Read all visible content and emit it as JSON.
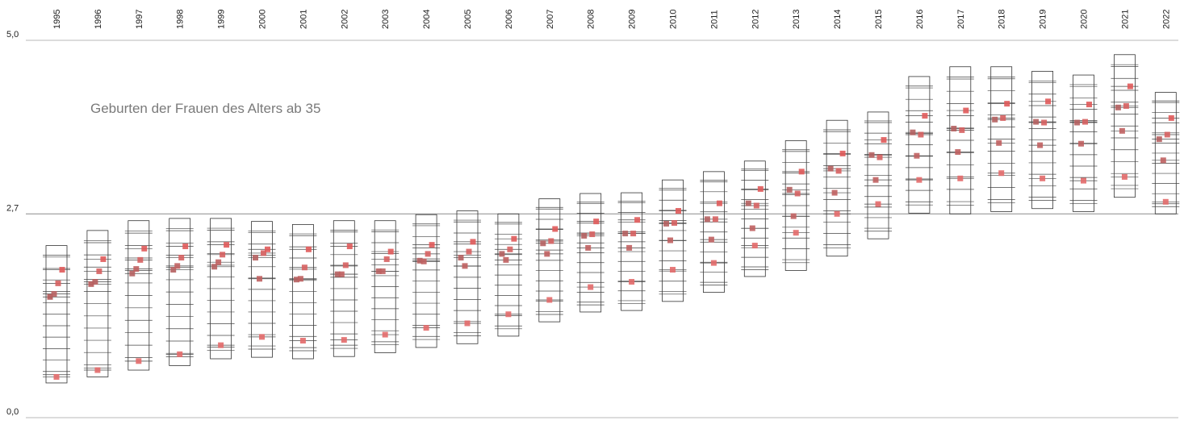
{
  "chart_data": {
    "type": "scatter",
    "title": "Geburten der Frauen des Alters ab 35",
    "ylim": [
      0,
      5
    ],
    "y_tick_labels": [
      "5,0",
      "2,7",
      "0,0"
    ],
    "y_ticks": [
      5.0,
      2.7,
      0.0
    ],
    "reference_line": 2.7,
    "categories": [
      "1995",
      "1996",
      "1997",
      "1998",
      "1999",
      "2000",
      "2001",
      "2002",
      "2003",
      "2004",
      "2005",
      "2006",
      "2007",
      "2008",
      "2009",
      "2010",
      "2011",
      "2012",
      "2013",
      "2014",
      "2015",
      "2016",
      "2017",
      "2018",
      "2019",
      "2020",
      "2021",
      "2022"
    ],
    "box_ranges": [
      [
        0.46,
        2.28
      ],
      [
        0.54,
        2.48
      ],
      [
        0.63,
        2.61
      ],
      [
        0.69,
        2.64
      ],
      [
        0.78,
        2.64
      ],
      [
        0.8,
        2.6
      ],
      [
        0.78,
        2.56
      ],
      [
        0.81,
        2.61
      ],
      [
        0.86,
        2.61
      ],
      [
        0.93,
        2.69
      ],
      [
        0.98,
        2.74
      ],
      [
        1.08,
        2.7
      ],
      [
        1.27,
        2.9
      ],
      [
        1.4,
        2.97
      ],
      [
        1.42,
        2.98
      ],
      [
        1.54,
        3.15
      ],
      [
        1.66,
        3.26
      ],
      [
        1.87,
        3.4
      ],
      [
        1.95,
        3.67
      ],
      [
        2.14,
        3.94
      ],
      [
        2.37,
        4.05
      ],
      [
        2.71,
        4.52
      ],
      [
        2.7,
        4.65
      ],
      [
        2.73,
        4.65
      ],
      [
        2.77,
        4.59
      ],
      [
        2.73,
        4.54
      ],
      [
        2.92,
        4.81
      ],
      [
        2.7,
        4.31
      ]
    ],
    "points": [
      [
        [
          1.6,
          "#b35656"
        ],
        [
          1.64,
          "#b86060"
        ],
        [
          1.78,
          "#d66060"
        ],
        [
          1.96,
          "#e05a5a"
        ],
        [
          0.54,
          "#e36a6a"
        ]
      ],
      [
        [
          1.77,
          "#b85a5a"
        ],
        [
          1.8,
          "#b65e5e"
        ],
        [
          1.94,
          "#d66060"
        ],
        [
          2.1,
          "#e05a5a"
        ],
        [
          0.63,
          "#e36a6a"
        ]
      ],
      [
        [
          1.91,
          "#b56060"
        ],
        [
          1.97,
          "#c06060"
        ],
        [
          2.09,
          "#d66060"
        ],
        [
          2.24,
          "#e05a5a"
        ],
        [
          0.75,
          "#e36a6a"
        ]
      ],
      [
        [
          1.96,
          "#b56060"
        ],
        [
          2.01,
          "#c06060"
        ],
        [
          2.12,
          "#d66060"
        ],
        [
          2.27,
          "#e05a5a"
        ],
        [
          0.84,
          "#e36a6a"
        ]
      ],
      [
        [
          2.0,
          "#b56060"
        ],
        [
          2.06,
          "#c06060"
        ],
        [
          2.16,
          "#d66060"
        ],
        [
          2.29,
          "#e05a5a"
        ],
        [
          0.96,
          "#e36a6a"
        ]
      ],
      [
        [
          2.12,
          "#b56060"
        ],
        [
          1.84,
          "#c06060"
        ],
        [
          2.18,
          "#d66060"
        ],
        [
          2.23,
          "#e05a5a"
        ],
        [
          1.07,
          "#e36a6a"
        ]
      ],
      [
        [
          1.83,
          "#b56060"
        ],
        [
          1.84,
          "#c06060"
        ],
        [
          1.99,
          "#d66060"
        ],
        [
          2.23,
          "#e05a5a"
        ],
        [
          1.02,
          "#e36a6a"
        ]
      ],
      [
        [
          1.9,
          "#b56060"
        ],
        [
          1.9,
          "#c06060"
        ],
        [
          2.02,
          "#d66060"
        ],
        [
          2.27,
          "#e05a5a"
        ],
        [
          1.03,
          "#e36a6a"
        ]
      ],
      [
        [
          1.94,
          "#b56060"
        ],
        [
          1.94,
          "#c06060"
        ],
        [
          2.1,
          "#d66060"
        ],
        [
          2.2,
          "#e05a5a"
        ],
        [
          1.1,
          "#e36a6a"
        ]
      ],
      [
        [
          2.08,
          "#b56060"
        ],
        [
          2.07,
          "#c06060"
        ],
        [
          2.17,
          "#d66060"
        ],
        [
          2.29,
          "#e05a5a"
        ],
        [
          1.19,
          "#e36a6a"
        ]
      ],
      [
        [
          2.12,
          "#b56060"
        ],
        [
          2.01,
          "#c06060"
        ],
        [
          2.2,
          "#d66060"
        ],
        [
          2.33,
          "#e05a5a"
        ],
        [
          1.25,
          "#e36a6a"
        ]
      ],
      [
        [
          2.17,
          "#b56060"
        ],
        [
          2.09,
          "#c06060"
        ],
        [
          2.23,
          "#d66060"
        ],
        [
          2.37,
          "#e05a5a"
        ],
        [
          1.37,
          "#e36a6a"
        ]
      ],
      [
        [
          2.31,
          "#b56060"
        ],
        [
          2.17,
          "#c06060"
        ],
        [
          2.34,
          "#d66060"
        ],
        [
          2.5,
          "#e05a5a"
        ],
        [
          1.56,
          "#e36a6a"
        ]
      ],
      [
        [
          2.41,
          "#b56060"
        ],
        [
          2.25,
          "#c06060"
        ],
        [
          2.43,
          "#d66060"
        ],
        [
          2.6,
          "#e05a5a"
        ],
        [
          1.73,
          "#e36a6a"
        ]
      ],
      [
        [
          2.44,
          "#b56060"
        ],
        [
          2.25,
          "#c06060"
        ],
        [
          2.44,
          "#d66060"
        ],
        [
          2.62,
          "#e05a5a"
        ],
        [
          1.8,
          "#e36a6a"
        ]
      ],
      [
        [
          2.57,
          "#b56060"
        ],
        [
          2.35,
          "#c06060"
        ],
        [
          2.58,
          "#d66060"
        ],
        [
          2.74,
          "#e05a5a"
        ],
        [
          1.96,
          "#e36a6a"
        ]
      ],
      [
        [
          2.63,
          "#b56060"
        ],
        [
          2.36,
          "#c06060"
        ],
        [
          2.63,
          "#d66060"
        ],
        [
          2.84,
          "#e05a5a"
        ],
        [
          2.05,
          "#e36a6a"
        ]
      ],
      [
        [
          2.84,
          "#b56060"
        ],
        [
          2.51,
          "#c06060"
        ],
        [
          2.81,
          "#d66060"
        ],
        [
          3.03,
          "#e05a5a"
        ],
        [
          2.28,
          "#e36a6a"
        ]
      ],
      [
        [
          3.02,
          "#b56060"
        ],
        [
          2.67,
          "#c06060"
        ],
        [
          2.97,
          "#d66060"
        ],
        [
          3.26,
          "#e05a5a"
        ],
        [
          2.45,
          "#e36a6a"
        ]
      ],
      [
        [
          3.3,
          "#b56060"
        ],
        [
          2.98,
          "#c06060"
        ],
        [
          3.27,
          "#d66060"
        ],
        [
          3.5,
          "#e05a5a"
        ],
        [
          2.7,
          "#e36a6a"
        ]
      ],
      [
        [
          3.48,
          "#b56060"
        ],
        [
          3.15,
          "#c06060"
        ],
        [
          3.45,
          "#d66060"
        ],
        [
          3.68,
          "#e05a5a"
        ],
        [
          2.83,
          "#e36a6a"
        ]
      ],
      [
        [
          3.78,
          "#b56060"
        ],
        [
          3.47,
          "#c06060"
        ],
        [
          3.75,
          "#d66060"
        ],
        [
          4.0,
          "#e05a5a"
        ],
        [
          3.15,
          "#e36a6a"
        ]
      ],
      [
        [
          3.83,
          "#b56060"
        ],
        [
          3.52,
          "#c06060"
        ],
        [
          3.81,
          "#d66060"
        ],
        [
          4.07,
          "#e05a5a"
        ],
        [
          3.17,
          "#e36a6a"
        ]
      ],
      [
        [
          3.95,
          "#b56060"
        ],
        [
          3.64,
          "#c06060"
        ],
        [
          3.97,
          "#d66060"
        ],
        [
          4.16,
          "#e05a5a"
        ],
        [
          3.24,
          "#e36a6a"
        ]
      ],
      [
        [
          3.92,
          "#b56060"
        ],
        [
          3.61,
          "#c06060"
        ],
        [
          3.91,
          "#d66060"
        ],
        [
          4.19,
          "#e05a5a"
        ],
        [
          3.17,
          "#e36a6a"
        ]
      ],
      [
        [
          3.91,
          "#b56060"
        ],
        [
          3.63,
          "#c06060"
        ],
        [
          3.92,
          "#d66060"
        ],
        [
          4.15,
          "#e05a5a"
        ],
        [
          3.14,
          "#e36a6a"
        ]
      ],
      [
        [
          4.11,
          "#b56060"
        ],
        [
          3.8,
          "#c06060"
        ],
        [
          4.13,
          "#d66060"
        ],
        [
          4.39,
          "#e05a5a"
        ],
        [
          3.19,
          "#e36a6a"
        ]
      ],
      [
        [
          3.69,
          "#b56060"
        ],
        [
          3.41,
          "#c06060"
        ],
        [
          3.75,
          "#d66060"
        ],
        [
          3.97,
          "#e05a5a"
        ],
        [
          2.86,
          "#e36a6a"
        ]
      ]
    ]
  }
}
